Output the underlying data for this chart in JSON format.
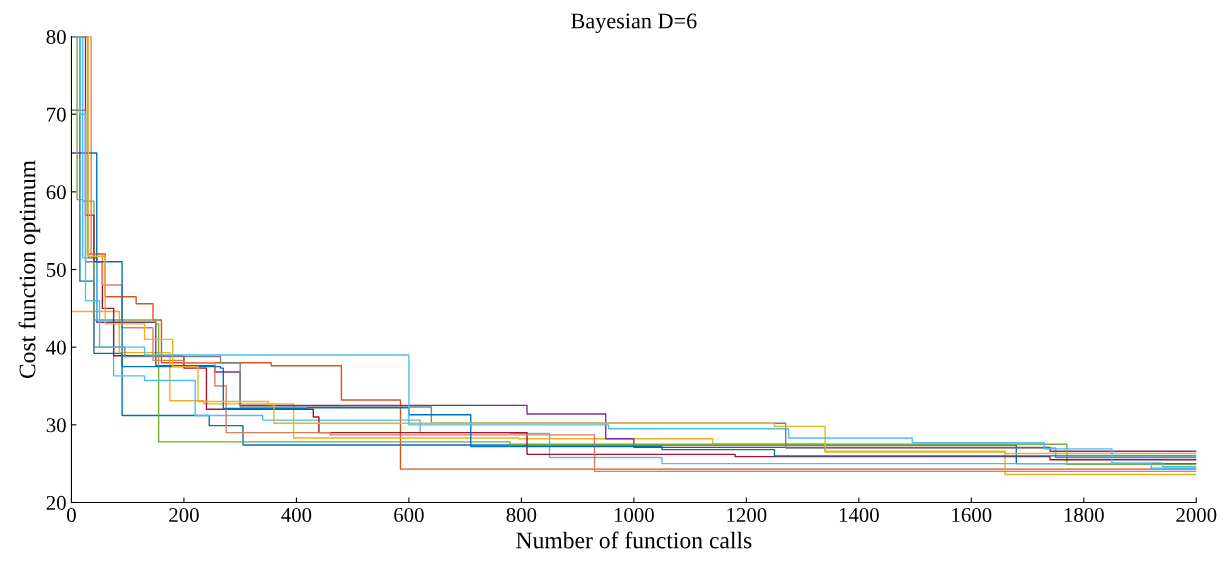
{
  "chart_data": {
    "type": "step",
    "title": "Bayesian D=6",
    "xlabel": "Number of function calls",
    "ylabel": "Cost function optimum",
    "xlim": [
      0,
      2000
    ],
    "ylim": [
      20,
      80
    ],
    "xticks": [
      0,
      200,
      400,
      600,
      800,
      1000,
      1200,
      1400,
      1600,
      1800,
      2000
    ],
    "yticks": [
      20,
      30,
      40,
      50,
      60,
      70,
      80
    ],
    "grid": false,
    "marker": "none",
    "line_style": "solid",
    "series": [
      {
        "color": "#0072bd",
        "x": [
          0,
          15,
          40,
          90,
          245,
          305,
          1680,
          2000
        ],
        "values": [
          80,
          48.5,
          39.2,
          31.2,
          29.9,
          27.4,
          25.0,
          25.0
        ]
      },
      {
        "color": "#d95319",
        "x": [
          0,
          30,
          60,
          115,
          145,
          160,
          355,
          480,
          585,
          2000
        ],
        "values": [
          80,
          52,
          46.5,
          45.6,
          43.5,
          38.0,
          37.6,
          33.2,
          24.3,
          24.3
        ]
      },
      {
        "color": "#edb120",
        "x": [
          0,
          85,
          175,
          235,
          395,
          795,
          1140,
          1340,
          1660,
          2000
        ],
        "values": [
          44.6,
          39.3,
          33.1,
          32.7,
          28.3,
          28.2,
          27.5,
          26.5,
          23.6,
          23.6
        ]
      },
      {
        "color": "#7e2f8e",
        "x": [
          0,
          30,
          45,
          150,
          255,
          300,
          810,
          950,
          1000,
          1740,
          2000
        ],
        "values": [
          65,
          51.5,
          43.2,
          37.6,
          36.8,
          32.5,
          31.4,
          28.2,
          27.1,
          26.6,
          26.6
        ]
      },
      {
        "color": "#77ac30",
        "x": [
          0,
          10,
          20,
          40,
          150,
          155,
          780,
          1770,
          2000
        ],
        "values": [
          80,
          59,
          58.8,
          43.5,
          43,
          27.8,
          27.5,
          24.9,
          24.9
        ]
      },
      {
        "color": "#4dbeee",
        "x": [
          0,
          20,
          45,
          75,
          130,
          220,
          340,
          620,
          780,
          850,
          1050,
          1920,
          2000
        ],
        "values": [
          80,
          51.5,
          43.5,
          36.3,
          35.7,
          31.2,
          30.6,
          29.0,
          28.9,
          25.8,
          25.0,
          24.4,
          24.4
        ]
      },
      {
        "color": "#a2142f",
        "x": [
          0,
          25,
          40,
          55,
          75,
          200,
          240,
          430,
          440,
          810,
          1180,
          1740,
          2000
        ],
        "values": [
          80,
          57,
          51,
          45,
          38.9,
          37.3,
          32.0,
          31.0,
          29.0,
          26.2,
          25.9,
          25.5,
          25.5
        ]
      },
      {
        "color": "#7f7f7f",
        "x": [
          0,
          25,
          40,
          95,
          265,
          300,
          640,
          1270,
          1750,
          2000
        ],
        "values": [
          70.5,
          51,
          40,
          38.8,
          38.0,
          32.3,
          30.2,
          27.0,
          25.8,
          25.8
        ]
      },
      {
        "color": "#e07a5f",
        "x": [
          0,
          35,
          55,
          90,
          145,
          200,
          255,
          275,
          460,
          930,
          2000
        ],
        "values": [
          80,
          52,
          48,
          42.5,
          38.3,
          38.0,
          35.0,
          29.0,
          28.7,
          24.0,
          24.0
        ]
      },
      {
        "color": "#0072bd",
        "x": [
          0,
          30,
          45,
          90,
          265,
          270,
          420,
          600,
          710,
          1050,
          1250,
          2000
        ],
        "values": [
          80,
          65,
          51,
          37.5,
          37.3,
          32.1,
          32.2,
          31.3,
          27.2,
          26.8,
          26.0,
          26.0
        ]
      },
      {
        "color": "#edb120",
        "x": [
          0,
          30,
          60,
          130,
          180,
          225,
          350,
          360,
          1250,
          1340,
          1660,
          2000
        ],
        "values": [
          80,
          51.7,
          43,
          41,
          37.5,
          33.0,
          32.6,
          30.2,
          29.8,
          26.6,
          26.3,
          26.3
        ]
      },
      {
        "color": "#4dbeee",
        "x": [
          0,
          15,
          25,
          50,
          130,
          600,
          955,
          1275,
          1495,
          1730,
          1850,
          1940,
          2000
        ],
        "values": [
          80,
          70,
          46,
          40,
          39,
          30.0,
          29.5,
          28.3,
          27.7,
          26.9,
          25.1,
          24.6,
          24.6
        ]
      }
    ]
  }
}
